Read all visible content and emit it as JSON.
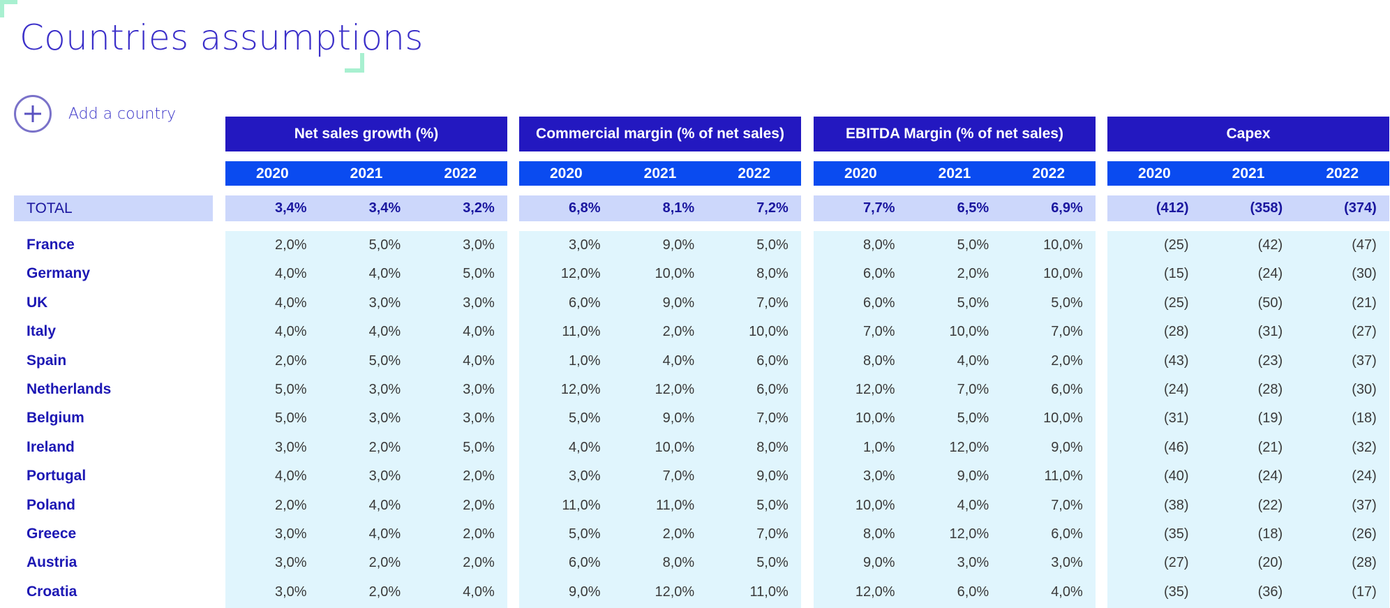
{
  "title": "Countries assumptions",
  "add_country": {
    "label": "Add a country",
    "icon": "plus-circle-icon"
  },
  "colors": {
    "header": "#2318c0",
    "years": "#0a4bf0",
    "total": "#ccd7fb",
    "body": "#e0f5fd",
    "accent": "#a8f0d0"
  },
  "total_label": "TOTAL",
  "countries": [
    "France",
    "Germany",
    "UK",
    "Italy",
    "Spain",
    "Netherlands",
    "Belgium",
    "Ireland",
    "Portugal",
    "Poland",
    "Greece",
    "Austria",
    "Croatia"
  ],
  "groups": [
    {
      "name": "Net sales growth (%)",
      "years": [
        "2020",
        "2021",
        "2022"
      ],
      "total": [
        "3,4%",
        "3,4%",
        "3,2%"
      ],
      "rows": [
        [
          "2,0%",
          "5,0%",
          "3,0%"
        ],
        [
          "4,0%",
          "4,0%",
          "5,0%"
        ],
        [
          "4,0%",
          "3,0%",
          "3,0%"
        ],
        [
          "4,0%",
          "4,0%",
          "4,0%"
        ],
        [
          "2,0%",
          "5,0%",
          "4,0%"
        ],
        [
          "5,0%",
          "3,0%",
          "3,0%"
        ],
        [
          "5,0%",
          "3,0%",
          "3,0%"
        ],
        [
          "3,0%",
          "2,0%",
          "5,0%"
        ],
        [
          "4,0%",
          "3,0%",
          "2,0%"
        ],
        [
          "2,0%",
          "4,0%",
          "2,0%"
        ],
        [
          "3,0%",
          "4,0%",
          "2,0%"
        ],
        [
          "3,0%",
          "2,0%",
          "2,0%"
        ],
        [
          "3,0%",
          "2,0%",
          "4,0%"
        ]
      ]
    },
    {
      "name": "Commercial margin (% of net sales)",
      "years": [
        "2020",
        "2021",
        "2022"
      ],
      "total": [
        "6,8%",
        "8,1%",
        "7,2%"
      ],
      "rows": [
        [
          "3,0%",
          "9,0%",
          "5,0%"
        ],
        [
          "12,0%",
          "10,0%",
          "8,0%"
        ],
        [
          "6,0%",
          "9,0%",
          "7,0%"
        ],
        [
          "11,0%",
          "2,0%",
          "10,0%"
        ],
        [
          "1,0%",
          "4,0%",
          "6,0%"
        ],
        [
          "12,0%",
          "12,0%",
          "6,0%"
        ],
        [
          "5,0%",
          "9,0%",
          "7,0%"
        ],
        [
          "4,0%",
          "10,0%",
          "8,0%"
        ],
        [
          "3,0%",
          "7,0%",
          "9,0%"
        ],
        [
          "11,0%",
          "11,0%",
          "5,0%"
        ],
        [
          "5,0%",
          "2,0%",
          "7,0%"
        ],
        [
          "6,0%",
          "8,0%",
          "5,0%"
        ],
        [
          "9,0%",
          "12,0%",
          "11,0%"
        ]
      ]
    },
    {
      "name": "EBITDA Margin (% of net sales)",
      "years": [
        "2020",
        "2021",
        "2022"
      ],
      "total": [
        "7,7%",
        "6,5%",
        "6,9%"
      ],
      "rows": [
        [
          "8,0%",
          "5,0%",
          "10,0%"
        ],
        [
          "6,0%",
          "2,0%",
          "10,0%"
        ],
        [
          "6,0%",
          "5,0%",
          "5,0%"
        ],
        [
          "7,0%",
          "10,0%",
          "7,0%"
        ],
        [
          "8,0%",
          "4,0%",
          "2,0%"
        ],
        [
          "12,0%",
          "7,0%",
          "6,0%"
        ],
        [
          "10,0%",
          "5,0%",
          "10,0%"
        ],
        [
          "1,0%",
          "12,0%",
          "9,0%"
        ],
        [
          "3,0%",
          "9,0%",
          "11,0%"
        ],
        [
          "10,0%",
          "4,0%",
          "7,0%"
        ],
        [
          "8,0%",
          "12,0%",
          "6,0%"
        ],
        [
          "9,0%",
          "3,0%",
          "3,0%"
        ],
        [
          "12,0%",
          "6,0%",
          "4,0%"
        ]
      ]
    },
    {
      "name": "Capex",
      "years": [
        "2020",
        "2021",
        "2022"
      ],
      "total": [
        "(412)",
        "(358)",
        "(374)"
      ],
      "rows": [
        [
          "(25)",
          "(42)",
          "(47)"
        ],
        [
          "(15)",
          "(24)",
          "(30)"
        ],
        [
          "(25)",
          "(50)",
          "(21)"
        ],
        [
          "(28)",
          "(31)",
          "(27)"
        ],
        [
          "(43)",
          "(23)",
          "(37)"
        ],
        [
          "(24)",
          "(28)",
          "(30)"
        ],
        [
          "(31)",
          "(19)",
          "(18)"
        ],
        [
          "(46)",
          "(21)",
          "(32)"
        ],
        [
          "(40)",
          "(24)",
          "(24)"
        ],
        [
          "(38)",
          "(22)",
          "(37)"
        ],
        [
          "(35)",
          "(18)",
          "(26)"
        ],
        [
          "(27)",
          "(20)",
          "(28)"
        ],
        [
          "(35)",
          "(36)",
          "(17)"
        ]
      ]
    }
  ]
}
